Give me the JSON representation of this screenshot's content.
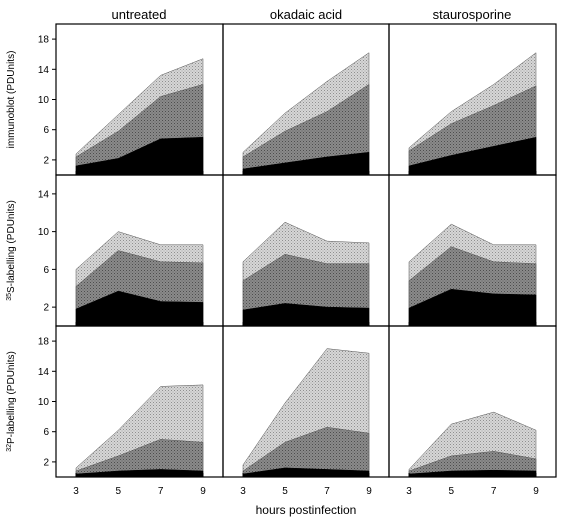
{
  "chart_data": {
    "type": "area",
    "stacked": true,
    "column_titles": [
      "untreated",
      "okadaic acid",
      "staurosporine"
    ],
    "x": [
      3,
      5,
      7,
      9
    ],
    "x_ticks": [
      "3",
      "5",
      "7",
      "9"
    ],
    "xlabel": "hours postinfection",
    "row_ylabels": [
      {
        "prefix": "",
        "sup": "",
        "main": "immunoblot (PDUnits)"
      },
      {
        "prefix": "",
        "sup": "35",
        "main": "S-labelling (PDUnits)"
      },
      {
        "prefix": "",
        "sup": "32",
        "main": "P-labelling (PDUnits)"
      }
    ],
    "row_ylims": [
      [
        0,
        20
      ],
      [
        0,
        16
      ],
      [
        0,
        20
      ]
    ],
    "row_yticks": [
      [
        "2",
        "6",
        "10",
        "14",
        "18"
      ],
      [
        "2",
        "6",
        "10",
        "14"
      ],
      [
        "2",
        "6",
        "10",
        "14",
        "18"
      ]
    ],
    "fill_colors": [
      "#000000",
      "#7a7a7a",
      "#c4c4c4"
    ],
    "panels": [
      [
        {
          "layers": [
            [
              1.2,
              2.2,
              4.8,
              5.0
            ],
            [
              2.4,
              5.8,
              10.4,
              12.0
            ],
            [
              2.8,
              8.0,
              13.2,
              15.4
            ]
          ]
        },
        {
          "layers": [
            [
              0.8,
              1.6,
              2.4,
              3.0
            ],
            [
              2.4,
              5.8,
              8.4,
              12.0
            ],
            [
              3.0,
              8.2,
              12.4,
              16.2
            ]
          ]
        },
        {
          "layers": [
            [
              1.2,
              2.6,
              3.8,
              5.0
            ],
            [
              3.2,
              6.8,
              9.2,
              11.8
            ],
            [
              3.6,
              8.4,
              12.0,
              16.2
            ]
          ]
        }
      ],
      [
        {
          "layers": [
            [
              1.8,
              3.7,
              2.6,
              2.5
            ],
            [
              4.2,
              8.0,
              6.8,
              6.7
            ],
            [
              6.0,
              10.0,
              8.6,
              8.6
            ]
          ]
        },
        {
          "layers": [
            [
              1.7,
              2.4,
              2.0,
              1.9
            ],
            [
              4.8,
              7.6,
              6.6,
              6.6
            ],
            [
              6.8,
              11.0,
              9.0,
              8.8
            ]
          ]
        },
        {
          "layers": [
            [
              1.9,
              3.9,
              3.4,
              3.3
            ],
            [
              4.8,
              8.4,
              6.8,
              6.6
            ],
            [
              6.8,
              10.8,
              8.6,
              8.6
            ]
          ]
        }
      ],
      [
        {
          "layers": [
            [
              0.4,
              0.8,
              1.0,
              0.8
            ],
            [
              0.8,
              2.8,
              5.0,
              4.6
            ],
            [
              1.2,
              6.2,
              12.0,
              12.2
            ]
          ]
        },
        {
          "layers": [
            [
              0.4,
              1.2,
              1.0,
              0.8
            ],
            [
              0.8,
              4.6,
              6.6,
              5.8
            ],
            [
              1.6,
              9.8,
              17.0,
              16.4
            ]
          ]
        },
        {
          "layers": [
            [
              0.4,
              0.8,
              0.9,
              0.8
            ],
            [
              0.8,
              2.8,
              3.4,
              2.4
            ],
            [
              1.0,
              7.0,
              8.6,
              6.2
            ]
          ]
        }
      ]
    ]
  }
}
